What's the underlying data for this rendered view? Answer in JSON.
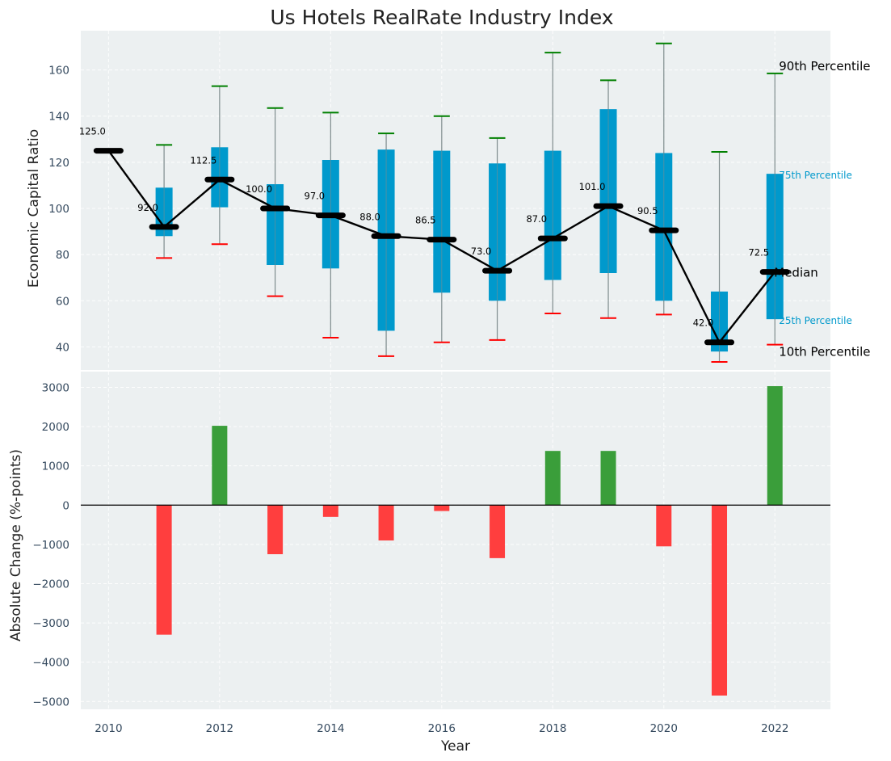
{
  "title": "Us Hotels RealRate Industry Index",
  "colors": {
    "panel_bg": "#ecf0f1",
    "iqr_box": "#0099cc",
    "whisker": "#7f8c8d",
    "cap_high": "#008000",
    "cap_low": "#ff0000",
    "median": "#000000",
    "positive": "#3a9e3a",
    "negative": "#ff3e3e",
    "zero_line": "#000000",
    "small_label": "#0099cc"
  },
  "chart_data": [
    {
      "type": "box",
      "ylabel": "Economic Capital Ratio",
      "ylim": [
        30,
        177
      ],
      "xlim": [
        2009.5,
        2023
      ],
      "yticks": [
        40,
        60,
        80,
        100,
        120,
        140,
        160
      ],
      "x": [
        2010,
        2011,
        2012,
        2013,
        2014,
        2015,
        2016,
        2017,
        2018,
        2019,
        2020,
        2021,
        2022
      ],
      "p10": [
        125,
        78.5,
        84.5,
        62,
        44,
        36,
        42,
        43,
        54.5,
        52.5,
        54,
        33.5,
        41
      ],
      "p25": [
        125,
        88,
        100.5,
        75.5,
        74,
        47,
        63.5,
        60,
        69,
        72,
        60,
        38,
        52
      ],
      "median": [
        125,
        92,
        112.5,
        100,
        97,
        88,
        86.5,
        73,
        87,
        101,
        90.5,
        42,
        72.5
      ],
      "p75": [
        125,
        109,
        126.5,
        110.5,
        121,
        125.5,
        125,
        119.5,
        125,
        143,
        124,
        64,
        115
      ],
      "p90": [
        125,
        127.5,
        153,
        143.5,
        141.5,
        132.5,
        140,
        130.5,
        167.5,
        155.5,
        171.5,
        124.5,
        158.5
      ],
      "median_labels": [
        "125.0",
        "92.0",
        "112.5",
        "100.0",
        "97.0",
        "88.0",
        "86.5",
        "73.0",
        "87.0",
        "101.0",
        "90.5",
        "42.0",
        "72.5"
      ],
      "annotations": {
        "p90": "90th Percentile",
        "p75": "75th Percentile",
        "median": "Median",
        "p25": "25th Percentile",
        "p10": "10th Percentile"
      }
    },
    {
      "type": "bar",
      "xlabel": "Year",
      "ylabel": "Absolute Change (%-points)",
      "ylim": [
        -5200,
        3400
      ],
      "yticks": [
        -5000,
        -4000,
        -3000,
        -2000,
        -1000,
        0,
        1000,
        2000,
        3000
      ],
      "ytick_labels": [
        "−5000",
        "−4000",
        "−3000",
        "−2000",
        "−1000",
        "0",
        "1000",
        "2000",
        "3000"
      ],
      "x": [
        2011,
        2012,
        2013,
        2014,
        2015,
        2016,
        2017,
        2018,
        2019,
        2020,
        2021,
        2022
      ],
      "values": [
        -3300,
        2020,
        -1250,
        -300,
        -900,
        -150,
        -1350,
        1380,
        1380,
        -1050,
        -4850,
        3030
      ],
      "xticks": [
        2010,
        2012,
        2014,
        2016,
        2018,
        2020,
        2022
      ]
    }
  ]
}
